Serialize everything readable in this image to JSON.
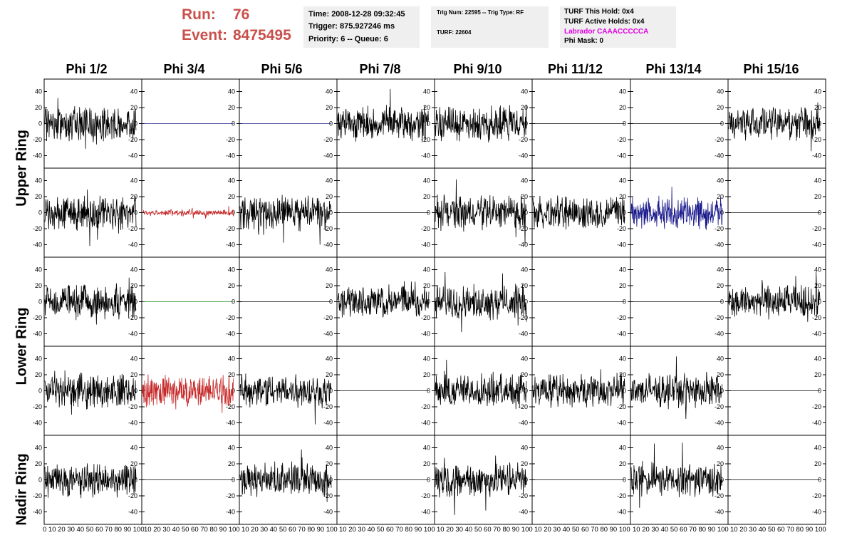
{
  "header": {
    "run_label": "Run:",
    "run_value": "76",
    "event_label": "Event:",
    "event_value": "8475495"
  },
  "info_box_time": {
    "time": "Time: 2008-12-28 09:32:45",
    "trigger": "Trigger: 875.927246 ms",
    "priority": "Priority: 6 -- Queue: 6"
  },
  "info_box_trig": {
    "trig": "Trig Num: 22595 -- Trig Type: RF",
    "turf": "TURF: 22604"
  },
  "info_box_turf": {
    "this_hold": "TURF This Hold: 0x4",
    "active_holds": "TURF Active Holds: 0x4",
    "labrador": "Labrador CAAACCCCCA",
    "phi_mask": "Phi Mask: 0"
  },
  "columns": [
    "Phi 1/2",
    "Phi 3/4",
    "Phi 5/6",
    "Phi 7/8",
    "Phi 9/10",
    "Phi 11/12",
    "Phi 13/14",
    "Phi 15/16"
  ],
  "rings": [
    "Upper Ring",
    "Lower Ring",
    "Nadir Ring"
  ],
  "y_ticks": [
    "40",
    "20",
    "0",
    "-20",
    "-40"
  ],
  "x_tick_labels": [
    "0 10 20 30 40 50 60 70 80 90 100",
    "10 20 30 40 50 60 70 80 90 100",
    "10 20 30 40 50 60 70 80 90 100",
    "10 20 30 40 50 60 70 80 90 100",
    "10 20 30 40 50 60 70 80 90 100",
    "10 20 30 40 50 60 70 80 90 100",
    "10 20 30 40 50 60 70 80 90 100",
    "10 20 30 40 50 60 70 80 90 100"
  ],
  "colors": {
    "title_red": "#c9504b",
    "labrador_magenta": "#e100e1",
    "trace_black": "#000000",
    "trace_blue": "#1a1a8c",
    "trace_red": "#c62828",
    "trace_green": "#1d8a1d"
  },
  "channels": [
    [
      "noise",
      "flat-blue",
      "flat-blue",
      "noise",
      "noise",
      "flat",
      "flat",
      "noise"
    ],
    [
      "noise",
      "small-red",
      "noise",
      "flat",
      "noise",
      "noise",
      "blue-noise",
      "flat"
    ],
    [
      "noise",
      "flat-green",
      "flat",
      "noise",
      "noise",
      "flat",
      "flat",
      "noise"
    ],
    [
      "noise",
      "big-red",
      "noise",
      "flat",
      "noise",
      "noise",
      "noise",
      "flat"
    ],
    [
      "noise",
      "flat",
      "noise",
      "flat",
      "noise",
      "flat",
      "noise",
      "flat"
    ]
  ]
}
